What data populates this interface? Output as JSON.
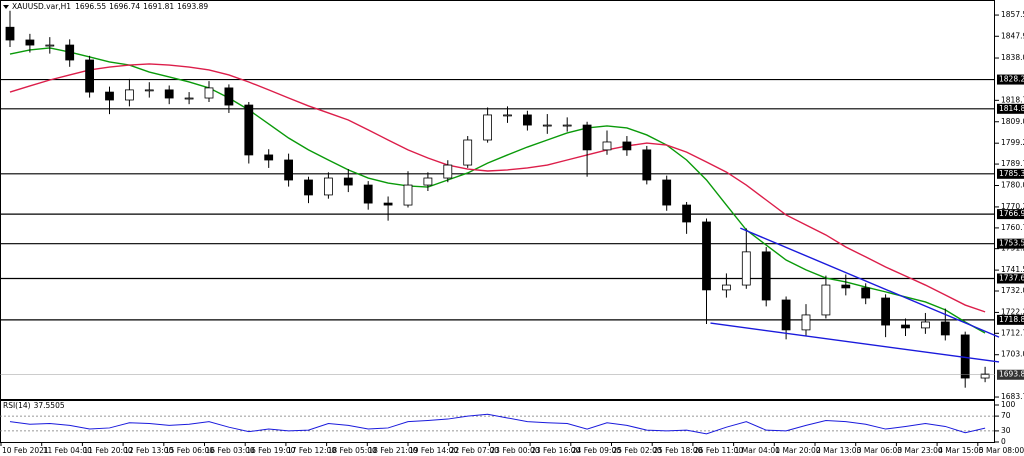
{
  "chart_data": {
    "type": "candlestick",
    "title": "XAUUSD.var,H1",
    "ohlc_header": [
      1696.55,
      1696.74,
      1691.81,
      1693.89
    ],
    "open": [
      1852.0,
      1846.2,
      1843.9,
      1843.9,
      1837.1,
      1822.5,
      1818.9,
      1823.5,
      1823.5,
      1819.8,
      1819.8,
      1824.4,
      1816.6,
      1793.9,
      1791.6,
      1782.5,
      1775.7,
      1783.4,
      1780.2,
      1772.0,
      1771.1,
      1780.2,
      1783.4,
      1789.3,
      1800.7,
      1812.1,
      1812.1,
      1807.5,
      1807.5,
      1807.5,
      1796.2,
      1799.8,
      1796.2,
      1782.5,
      1771.1,
      1763.4,
      1732.5,
      1734.7,
      1749.8,
      1727.9,
      1714.3,
      1721.1,
      1734.7,
      1733.4,
      1728.8,
      1716.5,
      1715.2,
      1717.9,
      1712.0,
      1692.4
    ],
    "high": [
      1859.5,
      1849.0,
      1847.5,
      1846.5,
      1839.0,
      1825.0,
      1828.5,
      1827.0,
      1825.5,
      1822.5,
      1827.5,
      1826.0,
      1818.0,
      1796.5,
      1794.5,
      1784.0,
      1786.0,
      1787.5,
      1782.0,
      1775.0,
      1786.5,
      1786.0,
      1791.5,
      1802.5,
      1815.5,
      1816.0,
      1814.0,
      1812.5,
      1811.0,
      1809.0,
      1805.0,
      1802.5,
      1798.0,
      1784.5,
      1772.5,
      1765.0,
      1740.0,
      1760.5,
      1752.0,
      1729.5,
      1726.0,
      1739.0,
      1739.5,
      1735.5,
      1730.5,
      1719.5,
      1722.0,
      1724.0,
      1713.5,
      1697.5
    ],
    "low": [
      1843.0,
      1840.5,
      1840.0,
      1834.0,
      1820.0,
      1812.5,
      1816.0,
      1820.0,
      1817.0,
      1817.0,
      1818.0,
      1813.0,
      1790.0,
      1788.0,
      1779.5,
      1772.0,
      1774.0,
      1777.0,
      1769.0,
      1764.0,
      1770.0,
      1777.5,
      1781.5,
      1788.0,
      1799.5,
      1808.5,
      1805.0,
      1803.5,
      1804.5,
      1784.0,
      1794.0,
      1793.5,
      1780.5,
      1768.5,
      1758.0,
      1717.0,
      1729.0,
      1733.0,
      1725.0,
      1710.0,
      1711.5,
      1719.5,
      1730.0,
      1726.0,
      1711.0,
      1711.5,
      1712.5,
      1709.5,
      1688.0,
      1690.5
    ],
    "close": [
      1846.2,
      1843.9,
      1843.9,
      1837.1,
      1822.5,
      1818.9,
      1823.5,
      1823.5,
      1819.8,
      1819.8,
      1824.4,
      1816.6,
      1793.9,
      1791.6,
      1782.5,
      1775.7,
      1783.4,
      1780.2,
      1772.0,
      1771.1,
      1780.2,
      1783.4,
      1789.3,
      1800.7,
      1812.1,
      1812.1,
      1807.5,
      1807.5,
      1807.5,
      1796.2,
      1799.8,
      1796.2,
      1782.5,
      1771.1,
      1763.4,
      1732.5,
      1734.7,
      1749.8,
      1727.9,
      1714.3,
      1721.1,
      1734.7,
      1733.4,
      1728.8,
      1716.5,
      1715.2,
      1717.9,
      1712.0,
      1692.4,
      1694.2
    ],
    "ylim": [
      1682.4,
      1864.4
    ],
    "yticks": [
      1857.55,
      {
        "value": 1847.9,
        "label": "1847.90"
      },
      {
        "value": 1838,
        "label": "1838.00"
      },
      1818.75,
      {
        "value": 1809,
        "label": "1809.00"
      },
      1799.25,
      1789.75,
      {
        "value": 1780,
        "label": "1780.00"
      },
      1770.25,
      {
        "value": 1760.7,
        "label": "1760.70"
      },
      1751.25,
      {
        "value": 1741.5,
        "label": "1741.50"
      },
      {
        "value": 1732,
        "label": "1732.00"
      },
      1722.25,
      1712.75,
      {
        "value": 1703,
        "label": "1703.00"
      },
      1683.75
    ],
    "levels": [
      {
        "value": 1828.2,
        "label": "1828.20"
      },
      1814.89,
      1785.32,
      1766.98,
      1753.53,
      1737.68,
      1718.87
    ],
    "current_price": 1693.89,
    "moving_averages": [
      {
        "color": "#0a9a0a",
        "values": [
          1839.8,
          1841.7,
          1842.6,
          1840.7,
          1838.5,
          1836.2,
          1834.8,
          1831.6,
          1829.4,
          1827.1,
          1824.4,
          1819.8,
          1814.4,
          1808.0,
          1801.6,
          1796.2,
          1791.6,
          1787.1,
          1783.4,
          1781.1,
          1779.8,
          1779.3,
          1782.5,
          1785.7,
          1790.2,
          1793.9,
          1797.5,
          1800.7,
          1803.9,
          1806.2,
          1807.1,
          1806.2,
          1803.0,
          1798.4,
          1791.6,
          1782.5,
          1771.1,
          1759.8,
          1752.9,
          1746.1,
          1741.6,
          1737.9,
          1736.1,
          1733.8,
          1731.6,
          1729.3,
          1727.0,
          1723.4,
          1717.9,
          1712.9
        ]
      },
      {
        "color": "#dc1e4a",
        "values": [
          1822.5,
          1825.3,
          1828.0,
          1830.3,
          1832.6,
          1833.9,
          1834.8,
          1835.3,
          1834.8,
          1833.9,
          1832.6,
          1830.3,
          1827.1,
          1823.5,
          1819.8,
          1816.2,
          1813.0,
          1809.8,
          1805.3,
          1800.7,
          1796.2,
          1792.5,
          1789.3,
          1787.5,
          1786.6,
          1787.1,
          1788.0,
          1789.3,
          1791.6,
          1793.9,
          1796.2,
          1798.0,
          1799.3,
          1798.4,
          1795.2,
          1790.7,
          1786.1,
          1780.2,
          1773.4,
          1766.6,
          1762.0,
          1757.5,
          1752.0,
          1747.5,
          1742.9,
          1738.8,
          1734.7,
          1730.2,
          1725.6,
          1722.5
        ]
      }
    ],
    "trendlines": {
      "color": "#1a1adc",
      "lines": [
        {
          "start": [
            36.7,
            1760.6
          ],
          "end": [
            49.7,
            1711.0
          ]
        },
        {
          "start": [
            35.2,
            1717.4
          ],
          "end": [
            49.7,
            1699.7
          ]
        }
      ]
    },
    "x_labels": [
      "10 Feb 2021",
      "11 Feb 04:00",
      "11 Feb 20:00",
      "12 Feb 13:00",
      "15 Feb 06:00",
      "16 Feb 03:00",
      "16 Feb 19:00",
      "17 Feb 12:00",
      "18 Feb 05:00",
      "18 Feb 21:00",
      "19 Feb 14:00",
      "22 Feb 07:00",
      "23 Feb 00:00",
      "23 Feb 16:00",
      "24 Feb 09:00",
      "25 Feb 02:00",
      "25 Feb 18:00",
      "26 Feb 11:00",
      "1 Mar 04:00",
      "1 Mar 20:00",
      "2 Mar 13:00",
      "3 Mar 06:00",
      "3 Mar 23:00",
      "4 Mar 15:00",
      "5 Mar 08:00"
    ],
    "rsi": {
      "label": "RSI(14)",
      "color": "#1a1adc",
      "values": [
        55,
        48,
        50,
        45,
        35,
        38,
        52,
        50,
        45,
        48,
        55,
        40,
        28,
        35,
        30,
        32,
        50,
        45,
        35,
        38,
        55,
        58,
        62,
        70,
        75,
        65,
        55,
        52,
        50,
        35,
        52,
        45,
        32,
        30,
        32,
        22,
        40,
        55,
        32,
        30,
        45,
        58,
        55,
        48,
        35,
        42,
        50,
        42,
        25,
        37.5505
      ],
      "ylim": [
        0,
        100
      ],
      "yticks": [
        100,
        70,
        30,
        0
      ],
      "levels": [
        70,
        30
      ]
    }
  }
}
